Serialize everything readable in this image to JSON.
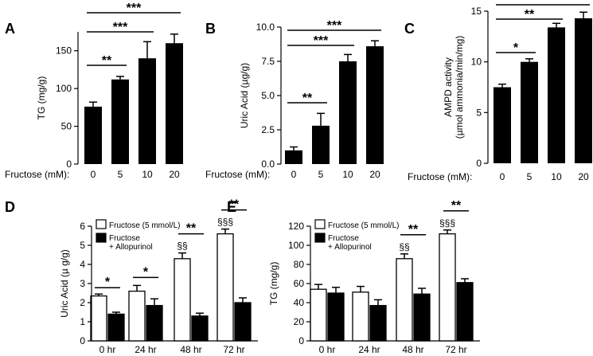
{
  "chart_data": [
    {
      "panel": "A",
      "type": "bar",
      "categories": [
        "0",
        "5",
        "10",
        "20"
      ],
      "values": [
        76,
        112,
        140,
        160
      ],
      "errors": [
        6,
        4,
        22,
        12
      ],
      "ylabel": "TG (mg/g)",
      "xlabel_prefix": "Fructose (mM):",
      "ylim": [
        0,
        175
      ],
      "yticks": [
        "0",
        "50",
        "100",
        "150"
      ],
      "bar_color": "#000000",
      "significance": [
        {
          "from": 0,
          "to": 1,
          "label": "**"
        },
        {
          "from": 0,
          "to": 2,
          "label": "***"
        },
        {
          "from": 0,
          "to": 3,
          "label": "***"
        }
      ]
    },
    {
      "panel": "B",
      "type": "bar",
      "categories": [
        "0",
        "5",
        "10",
        "20"
      ],
      "values": [
        1.0,
        2.8,
        7.5,
        8.6
      ],
      "errors": [
        0.25,
        0.9,
        0.5,
        0.4
      ],
      "ylabel": "Uric Acid (µg/g)",
      "xlabel_prefix": "Fructose (mM):",
      "ylim": [
        0,
        10
      ],
      "yticks": [
        "0.0",
        "2.5",
        "5.0",
        "7.5",
        "10.0"
      ],
      "bar_color": "#000000",
      "significance": [
        {
          "from": 0,
          "to": 1,
          "label": "**"
        },
        {
          "from": 0,
          "to": 2,
          "label": "***"
        },
        {
          "from": 0,
          "to": 3,
          "label": "***"
        }
      ]
    },
    {
      "panel": "C",
      "type": "bar",
      "categories": [
        "0",
        "5",
        "10",
        "20"
      ],
      "values": [
        7.5,
        10.0,
        13.4,
        14.3
      ],
      "errors": [
        0.3,
        0.3,
        0.4,
        0.6
      ],
      "ylabel_line1": "AMPD activity",
      "ylabel_line2": "(µmol ammonia/min/mg)",
      "xlabel_prefix": "Fructose (mM):",
      "ylim": [
        0,
        15
      ],
      "yticks": [
        "0",
        "5",
        "10",
        "15"
      ],
      "bar_color": "#000000",
      "significance": [
        {
          "from": 0,
          "to": 1,
          "label": "*"
        },
        {
          "from": 0,
          "to": 2,
          "label": "**"
        },
        {
          "from": 0,
          "to": 3,
          "label": "**"
        }
      ]
    },
    {
      "panel": "D",
      "type": "bar",
      "categories": [
        "0 hr",
        "24 hr",
        "48 hr",
        "72 hr"
      ],
      "series": [
        {
          "name": "Fructose (5 mmol/L)",
          "fill": "#ffffff",
          "values": [
            2.35,
            2.6,
            4.3,
            5.6
          ],
          "errors": [
            0.1,
            0.3,
            0.3,
            0.25
          ]
        },
        {
          "name_line1": "Fructose",
          "name_line2": "+ Allopurinol",
          "fill": "#000000",
          "values": [
            1.4,
            1.85,
            1.3,
            2.0
          ],
          "errors": [
            0.1,
            0.35,
            0.15,
            0.25
          ]
        }
      ],
      "ylabel": "Uric Acid (µ g/g)",
      "ylim": [
        0,
        6
      ],
      "yticks": [
        "0",
        "1",
        "2",
        "3",
        "4",
        "5",
        "6"
      ],
      "legend_position": "top-left",
      "significance": [
        {
          "group": 0,
          "label": "*"
        },
        {
          "group": 1,
          "label": "*"
        },
        {
          "group": 2,
          "label": "**"
        },
        {
          "group": 3,
          "label": "**"
        }
      ],
      "annotations": [
        {
          "group": 2,
          "label": "§§"
        },
        {
          "group": 3,
          "label": "§§§"
        }
      ]
    },
    {
      "panel": "E",
      "type": "bar",
      "categories": [
        "0 hr",
        "24 hr",
        "48 hr",
        "72 hr"
      ],
      "series": [
        {
          "name": "Fructose (5 mmol/L)",
          "fill": "#ffffff",
          "values": [
            54,
            51,
            86,
            112
          ],
          "errors": [
            5,
            6,
            5,
            4
          ]
        },
        {
          "name_line1": "Fructose",
          "name_line2": "+ Allopurinol",
          "fill": "#000000",
          "values": [
            50,
            37,
            49,
            61
          ],
          "errors": [
            6,
            6,
            6,
            4
          ]
        }
      ],
      "ylabel": "TG (mg/g)",
      "ylim": [
        0,
        120
      ],
      "yticks": [
        "0",
        "20",
        "40",
        "60",
        "80",
        "100",
        "120"
      ],
      "legend_position": "top-left",
      "significance": [
        {
          "group": 2,
          "label": "**"
        },
        {
          "group": 3,
          "label": "**"
        }
      ],
      "annotations": [
        {
          "group": 2,
          "label": "§§"
        },
        {
          "group": 3,
          "label": "§§§"
        }
      ]
    }
  ]
}
